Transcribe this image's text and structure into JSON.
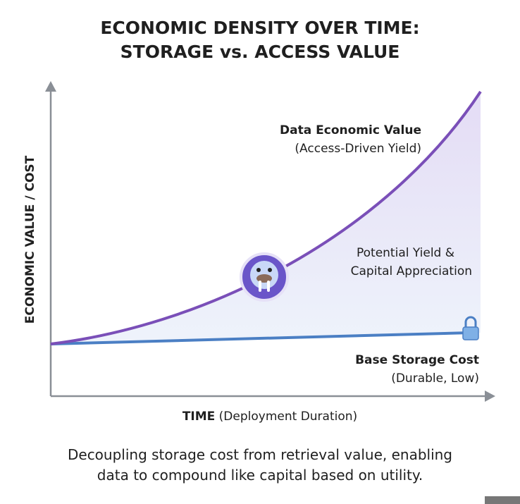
{
  "title": {
    "line1": "ECONOMIC DENSITY OVER TIME:",
    "line2": "STORAGE vs. ACCESS VALUE"
  },
  "axes": {
    "y_label": "ECONOMIC VALUE / COST",
    "x_label_bold": "TIME",
    "x_label_note": "(Deployment Duration)"
  },
  "annotations": {
    "value_title": "Data Economic Value",
    "value_note": "(Access-Driven Yield)",
    "yield_line1": "Potential Yield &",
    "yield_line2": "Capital Appreciation",
    "cost_title": "Base Storage Cost",
    "cost_note": "(Durable, Low)"
  },
  "caption": {
    "line1": "Decoupling storage cost from retrieval value, enabling",
    "line2": "data to compound like capital based on utility."
  }
}
